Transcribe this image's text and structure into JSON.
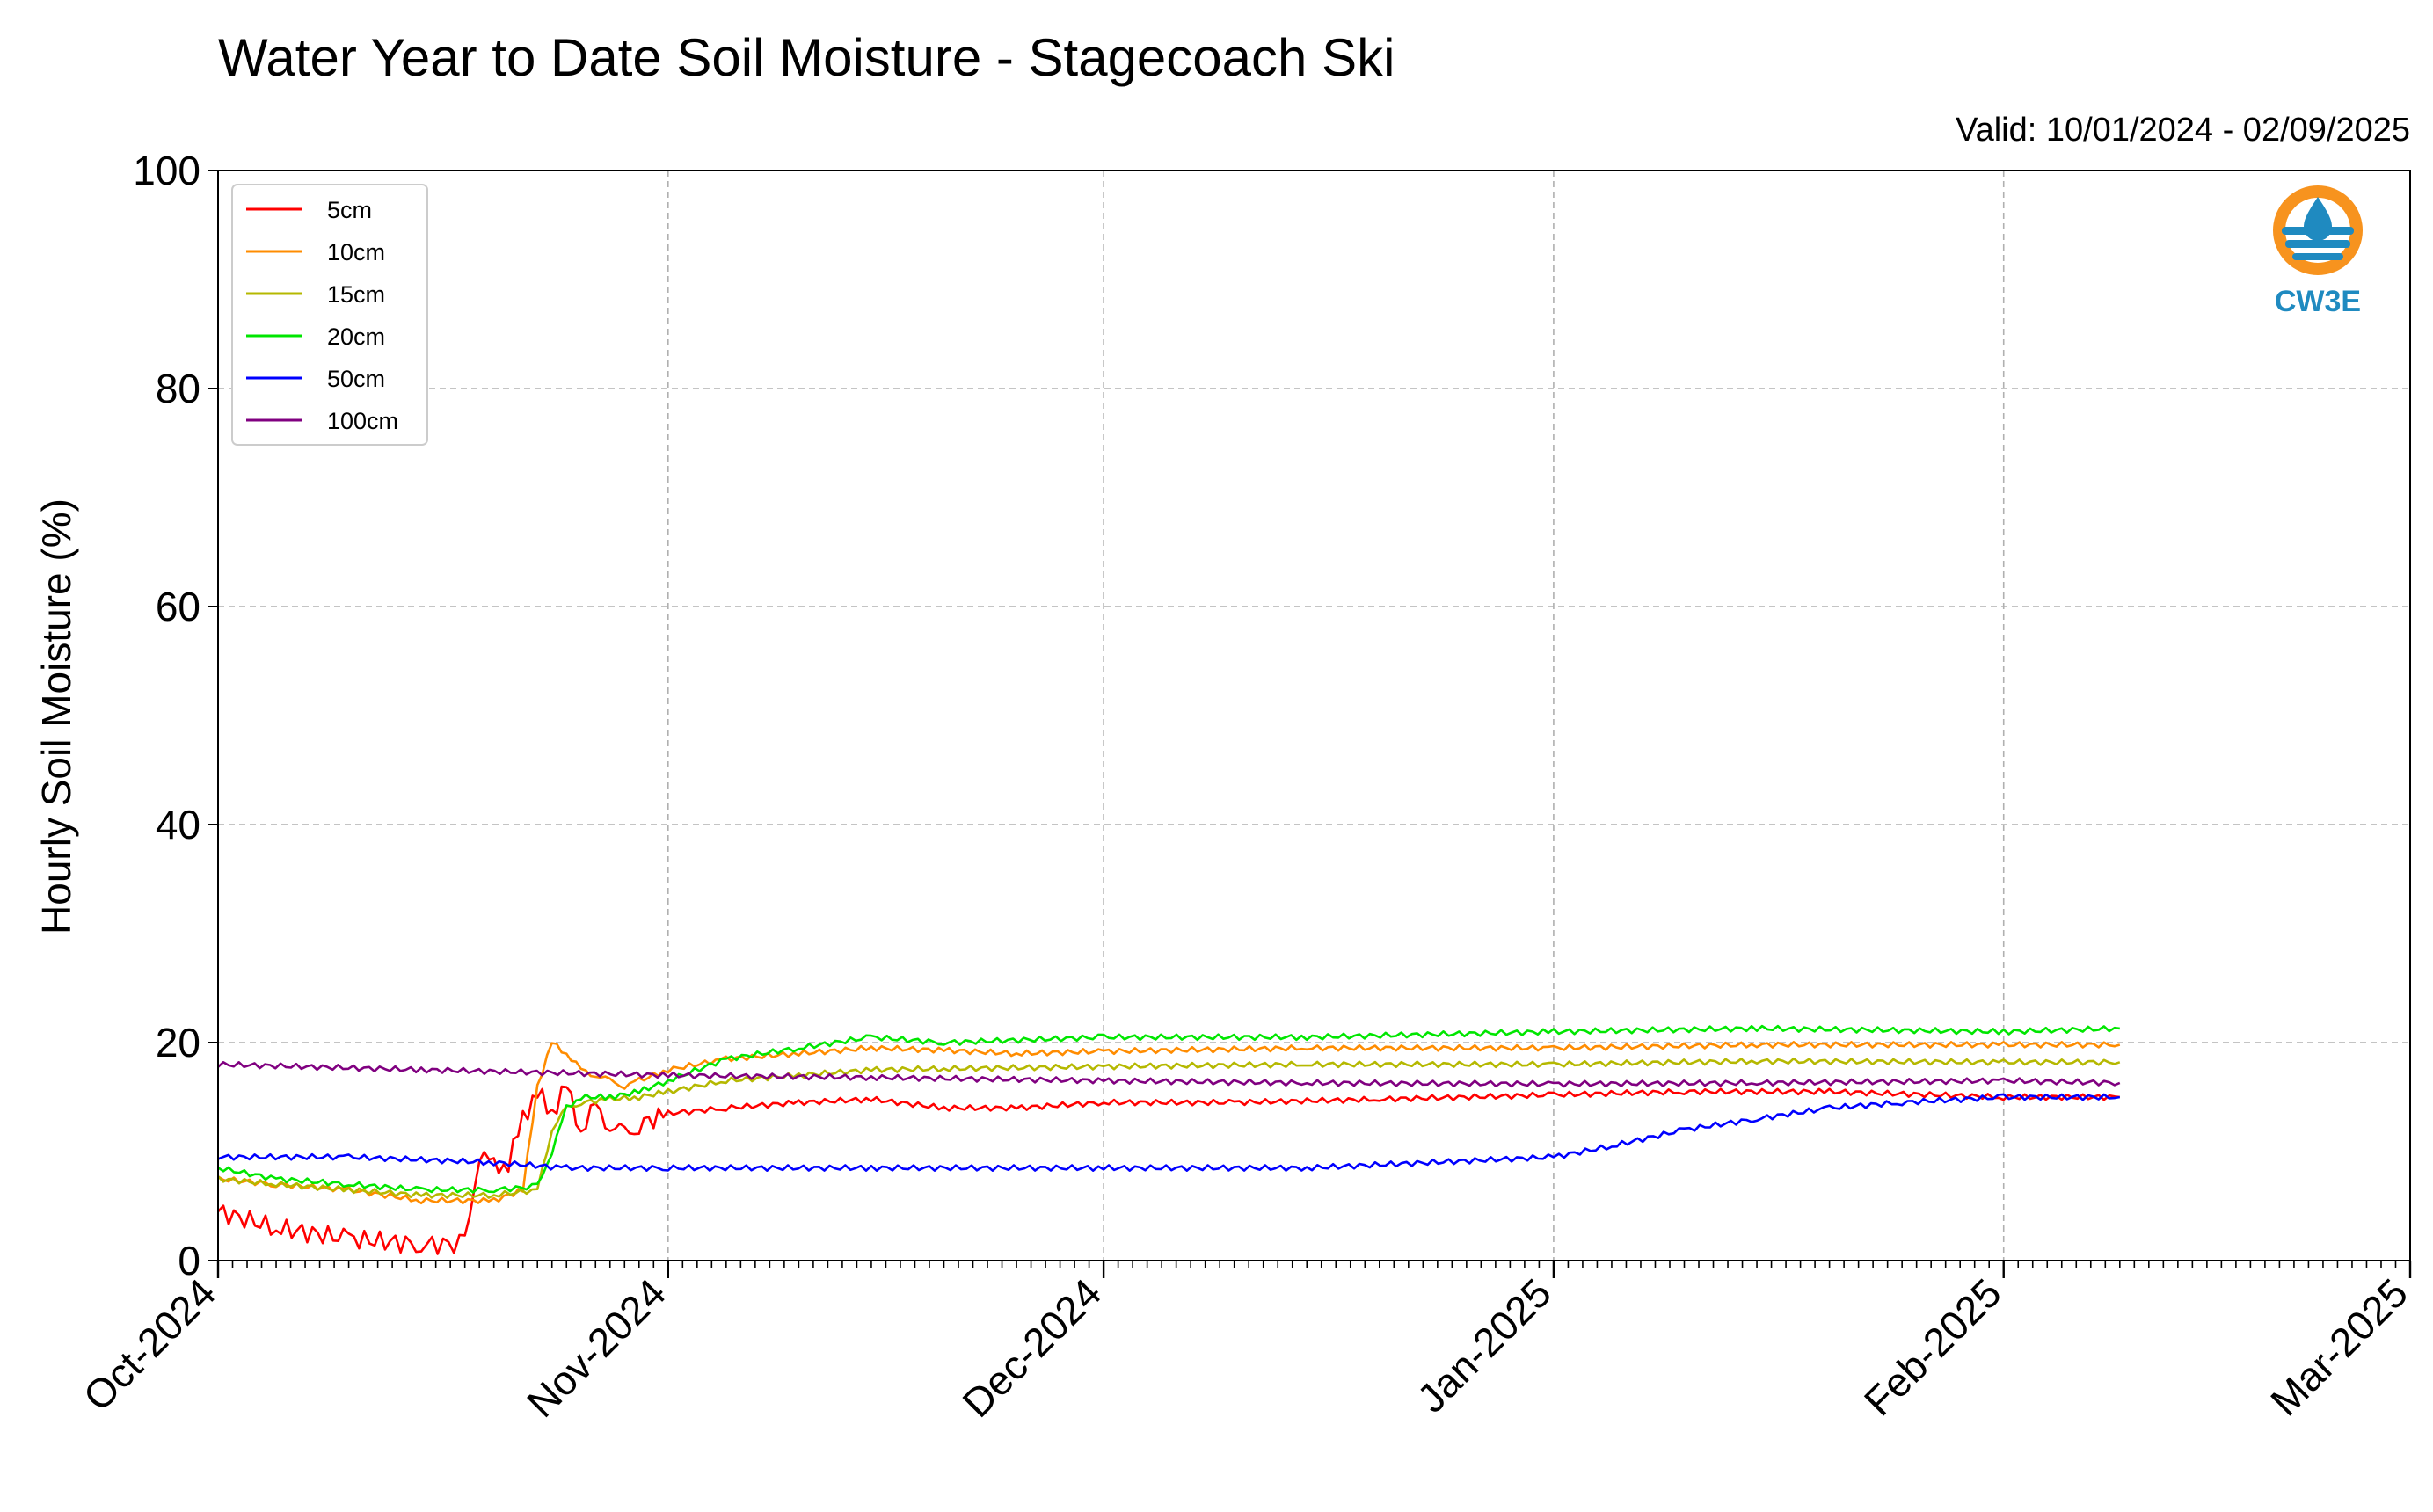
{
  "chart_data": {
    "type": "line",
    "title": "Water Year to Date Soil Moisture - Stagecoach Ski",
    "subtitle": "Valid: 10/01/2024 - 02/09/2025",
    "xlabel": "",
    "ylabel": "Hourly Soil Moisture (%)",
    "ylim": [
      0,
      100
    ],
    "xlim": [
      "2024-10-01",
      "2025-03-01"
    ],
    "yticks": [
      "0",
      "20",
      "40",
      "60",
      "80",
      "100"
    ],
    "xticks": [
      "Oct-2024",
      "Nov-2024",
      "Dec-2024",
      "Jan-2025",
      "Feb-2025",
      "Mar-2025"
    ],
    "xtick_dates": [
      "2024-10-01",
      "2024-11-01",
      "2024-12-01",
      "2025-01-01",
      "2025-02-01",
      "2025-03-01"
    ],
    "grid": true,
    "legend_position": "top-left",
    "series": [
      {
        "name": "5cm",
        "color": "#ff0000",
        "x": [
          "2024-10-01",
          "2024-10-05",
          "2024-10-10",
          "2024-10-15",
          "2024-10-18",
          "2024-10-19",
          "2024-10-20",
          "2024-10-21",
          "2024-10-22",
          "2024-10-23",
          "2024-10-24",
          "2024-10-25",
          "2024-10-26",
          "2024-10-27",
          "2024-10-28",
          "2024-10-29",
          "2024-10-30",
          "2024-11-01",
          "2024-11-05",
          "2024-11-10",
          "2024-11-15",
          "2024-11-20",
          "2024-11-25",
          "2024-12-01",
          "2024-12-10",
          "2024-12-20",
          "2025-01-01",
          "2025-01-10",
          "2025-01-20",
          "2025-02-01",
          "2025-02-09"
        ],
        "y": [
          4.5,
          3.0,
          2.0,
          1.5,
          1.5,
          10.0,
          8.5,
          9.0,
          13.0,
          15.5,
          13.5,
          16.0,
          12.0,
          14.0,
          12.5,
          11.5,
          12.5,
          13.5,
          14.0,
          14.5,
          14.8,
          14.0,
          14.0,
          14.5,
          14.5,
          14.8,
          15.2,
          15.5,
          15.5,
          15.0,
          15.0
        ]
      },
      {
        "name": "10cm",
        "color": "#ff8c00",
        "x": [
          "2024-10-01",
          "2024-10-05",
          "2024-10-10",
          "2024-10-15",
          "2024-10-20",
          "2024-10-22",
          "2024-10-23",
          "2024-10-24",
          "2024-10-25",
          "2024-10-26",
          "2024-10-27",
          "2024-10-28",
          "2024-10-29",
          "2024-10-30",
          "2024-11-01",
          "2024-11-05",
          "2024-11-10",
          "2024-11-15",
          "2024-11-20",
          "2024-11-25",
          "2024-12-01",
          "2024-12-15",
          "2025-01-01",
          "2025-01-15",
          "2025-02-01",
          "2025-02-09"
        ],
        "y": [
          7.5,
          7.0,
          6.5,
          5.5,
          5.5,
          6.5,
          16.0,
          20.0,
          19.0,
          17.5,
          17.0,
          16.5,
          16.0,
          16.5,
          17.5,
          18.5,
          19.0,
          19.5,
          19.3,
          19.0,
          19.2,
          19.5,
          19.5,
          19.8,
          19.8,
          19.8
        ]
      },
      {
        "name": "15cm",
        "color": "#b5b800",
        "x": [
          "2024-10-01",
          "2024-10-05",
          "2024-10-10",
          "2024-10-15",
          "2024-10-20",
          "2024-10-23",
          "2024-10-24",
          "2024-10-25",
          "2024-10-26",
          "2024-10-28",
          "2024-10-30",
          "2024-11-01",
          "2024-11-05",
          "2024-11-10",
          "2024-11-15",
          "2024-11-20",
          "2024-12-01",
          "2024-12-15",
          "2025-01-01",
          "2025-01-15",
          "2025-02-01",
          "2025-02-09"
        ],
        "y": [
          7.5,
          7.0,
          6.5,
          6.0,
          6.0,
          6.5,
          12.0,
          14.0,
          14.5,
          14.8,
          15.0,
          15.5,
          16.5,
          17.0,
          17.5,
          17.6,
          17.8,
          18.0,
          18.0,
          18.3,
          18.2,
          18.2
        ]
      },
      {
        "name": "20cm",
        "color": "#00e600",
        "x": [
          "2024-10-01",
          "2024-10-05",
          "2024-10-10",
          "2024-10-15",
          "2024-10-20",
          "2024-10-23",
          "2024-10-24",
          "2024-10-25",
          "2024-10-26",
          "2024-10-28",
          "2024-10-30",
          "2024-11-01",
          "2024-11-05",
          "2024-11-10",
          "2024-11-15",
          "2024-11-20",
          "2024-12-01",
          "2024-12-15",
          "2025-01-01",
          "2025-01-15",
          "2025-02-01",
          "2025-02-09"
        ],
        "y": [
          8.5,
          7.5,
          7.0,
          6.5,
          6.5,
          6.8,
          10.0,
          14.0,
          15.0,
          15.0,
          15.5,
          16.5,
          18.5,
          19.5,
          20.5,
          20.0,
          20.5,
          20.5,
          21.0,
          21.3,
          21.0,
          21.3
        ]
      },
      {
        "name": "50cm",
        "color": "#0000ff",
        "x": [
          "2024-10-01",
          "2024-10-10",
          "2024-10-20",
          "2024-10-25",
          "2024-11-01",
          "2024-11-15",
          "2024-12-01",
          "2024-12-15",
          "2025-01-01",
          "2025-01-05",
          "2025-01-10",
          "2025-01-15",
          "2025-01-20",
          "2025-01-25",
          "2025-02-01",
          "2025-02-09"
        ],
        "y": [
          9.5,
          9.5,
          9.0,
          8.5,
          8.5,
          8.5,
          8.5,
          8.5,
          9.5,
          10.5,
          12.0,
          13.0,
          14.0,
          14.5,
          15.0,
          15.0
        ]
      },
      {
        "name": "100cm",
        "color": "#800080",
        "x": [
          "2024-10-01",
          "2024-10-15",
          "2024-11-01",
          "2024-11-15",
          "2024-12-01",
          "2024-12-15",
          "2025-01-01",
          "2025-01-15",
          "2025-02-01",
          "2025-02-09"
        ],
        "y": [
          18.0,
          17.5,
          17.0,
          16.8,
          16.5,
          16.3,
          16.2,
          16.3,
          16.5,
          16.3
        ]
      }
    ]
  },
  "logo": {
    "text": "CW3E",
    "ring_color": "#f7931e",
    "wave_color": "#1f8ac0"
  }
}
